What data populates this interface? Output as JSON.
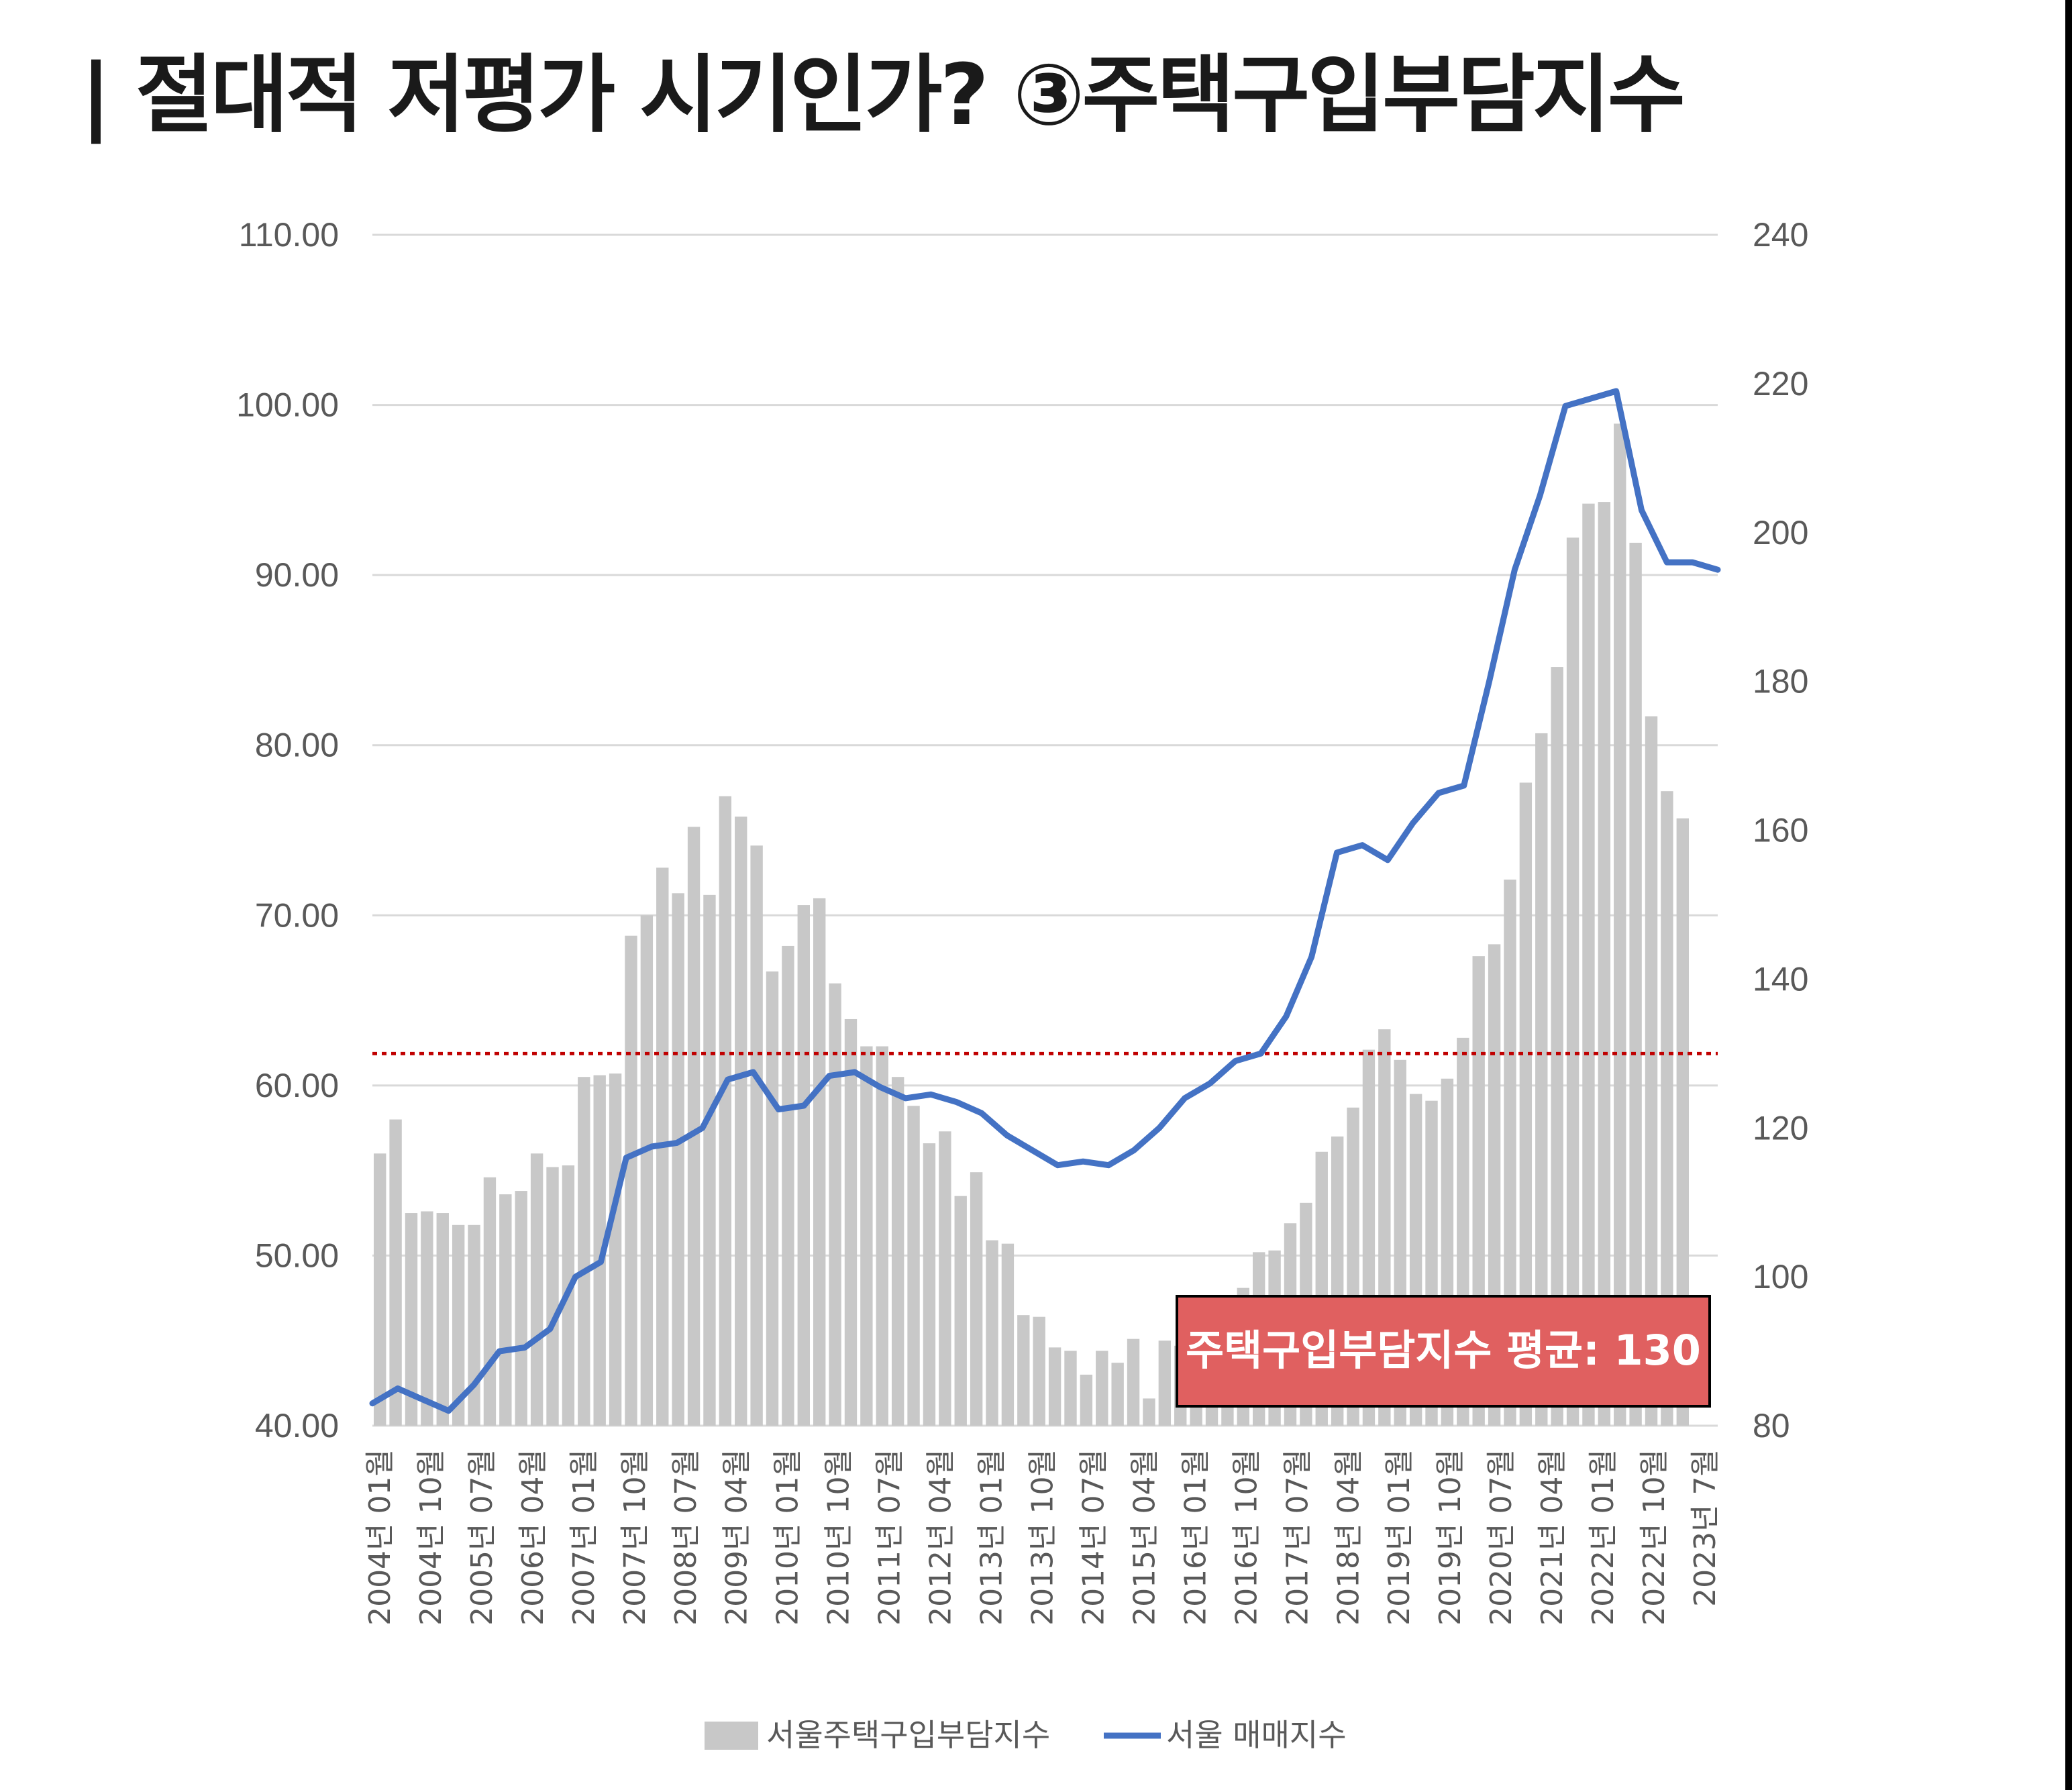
{
  "title": "| 절대적 저평가 시기인가? ③주택구입부담지수",
  "callout": "주택구입부담지수 평균: 130",
  "colors": {
    "bars": "#c8c8c8",
    "line": "#4472c4",
    "avg_line": "#c00000",
    "callout_fill": "#e06060",
    "grid": "#d9d9d9"
  },
  "chart_data": {
    "type": "bar+line",
    "x_labels": [
      "2004년 01월",
      "2004년 10월",
      "2005년 07월",
      "2006년 04월",
      "2007년 01월",
      "2007년 10월",
      "2008년 07월",
      "2009년 04월",
      "2010년 01월",
      "2010년 10월",
      "2011년 07월",
      "2012년 04월",
      "2013년 01월",
      "2013년 10월",
      "2014년 07월",
      "2015년 04월",
      "2016년 01월",
      "2016년 10월",
      "2017년 07월",
      "2018년 04월",
      "2019년 01월",
      "2019년 10월",
      "2020년 07월",
      "2021년 04월",
      "2022년 01월",
      "2022년 10월",
      "2023년 7월"
    ],
    "y_left": {
      "ticks": [
        "110.00",
        "100.00",
        "90.00",
        "80.00",
        "70.00",
        "60.00",
        "50.00",
        "40.00"
      ],
      "range": [
        40,
        110
      ]
    },
    "y_right": {
      "ticks": [
        "240",
        "220",
        "200",
        "180",
        "160",
        "140",
        "120",
        "100",
        "80"
      ],
      "range": [
        80,
        240
      ]
    },
    "average_line_right_axis": 130,
    "series": [
      {
        "name": "서울주택구입부담지수",
        "type": "bar",
        "axis": "left",
        "values": [
          56,
          58,
          52.5,
          52.6,
          52.5,
          51.8,
          51.8,
          54.6,
          53.6,
          53.8,
          56.0,
          55.2,
          55.3,
          60.5,
          60.6,
          60.7,
          68.8,
          70.0,
          72.8,
          71.3,
          75.2,
          71.2,
          77.0,
          75.8,
          74.1,
          66.7,
          68.2,
          70.6,
          71.0,
          66.0,
          63.9,
          62.3,
          62.3,
          60.5,
          58.8,
          56.6,
          57.3,
          53.5,
          54.9,
          50.9,
          50.7,
          46.5,
          46.4,
          44.6,
          44.4,
          43.0,
          44.4,
          43.7,
          45.1,
          41.6,
          45.0,
          44.7,
          45.9,
          46.8,
          47.3,
          48.1,
          50.2,
          50.3,
          51.9,
          53.1,
          56.1,
          57.0,
          58.7,
          62.1,
          63.3,
          61.5,
          59.5,
          59.1,
          60.4,
          62.8,
          67.6,
          68.3,
          72.1,
          77.8,
          80.7,
          84.6,
          92.2,
          94.2,
          94.3,
          98.9,
          91.9,
          81.7,
          77.3,
          75.7
        ]
      },
      {
        "name": "서울 매매지수",
        "type": "line",
        "axis": "right",
        "points": [
          [
            0,
            83
          ],
          [
            1,
            85
          ],
          [
            2,
            83.5
          ],
          [
            3,
            82
          ],
          [
            4,
            85.5
          ],
          [
            5,
            90
          ],
          [
            6,
            90.5
          ],
          [
            7,
            93
          ],
          [
            8,
            100
          ],
          [
            9,
            102
          ],
          [
            10,
            116
          ],
          [
            11,
            117.5
          ],
          [
            12,
            118
          ],
          [
            13,
            120
          ],
          [
            14,
            126.5
          ],
          [
            15,
            127.5
          ],
          [
            16,
            122.5
          ],
          [
            17,
            123
          ],
          [
            18,
            127
          ],
          [
            19,
            127.5
          ],
          [
            20,
            125.5
          ],
          [
            21,
            124
          ],
          [
            22,
            124.5
          ],
          [
            23,
            123.5
          ],
          [
            24,
            122
          ],
          [
            25,
            119
          ],
          [
            26,
            117
          ],
          [
            27,
            115
          ],
          [
            28,
            115.5
          ],
          [
            29,
            115
          ],
          [
            30,
            117
          ],
          [
            31,
            120
          ],
          [
            32,
            124
          ],
          [
            33,
            126
          ],
          [
            34,
            129
          ],
          [
            35,
            130
          ],
          [
            36,
            135
          ],
          [
            37,
            143
          ],
          [
            38,
            157
          ],
          [
            39,
            158
          ],
          [
            40,
            156
          ],
          [
            41,
            161
          ],
          [
            42,
            165
          ],
          [
            43,
            166
          ],
          [
            44,
            180
          ],
          [
            45,
            195
          ],
          [
            46,
            205
          ],
          [
            47,
            217
          ],
          [
            48,
            218
          ],
          [
            49,
            219
          ],
          [
            50,
            203
          ],
          [
            51,
            196
          ],
          [
            52,
            196
          ],
          [
            53,
            195
          ]
        ]
      }
    ],
    "legend_position": "bottom",
    "grid": true
  }
}
